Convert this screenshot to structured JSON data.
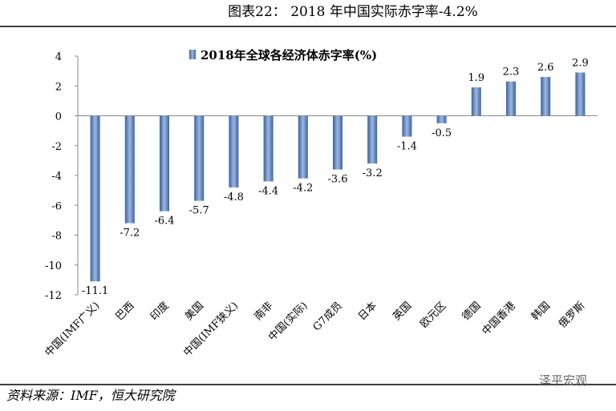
{
  "header": "图表22：  2018 年中国实际赤字率-4.2%",
  "source": "资料来源：IMF，恒大研究院",
  "watermark": "泽平宏观",
  "chart_data": {
    "type": "bar",
    "categories": [
      "中国(IMF广义)",
      "巴西",
      "印度",
      "美国",
      "中国(IMF狭义)",
      "南非",
      "中国(实际)",
      "G7成员",
      "日本",
      "英国",
      "欧元区",
      "德国",
      "中国香港",
      "韩国",
      "俄罗斯"
    ],
    "series": [
      {
        "name": "2018年全球各经济体赤字率(%)",
        "color": "#4f81bd",
        "values": [
          -11.1,
          -7.2,
          -6.4,
          -5.7,
          -4.8,
          -4.4,
          -4.2,
          -3.6,
          -3.2,
          -1.4,
          -0.5,
          1.9,
          2.3,
          2.6,
          2.9
        ]
      }
    ],
    "ylim": [
      -12,
      4
    ],
    "yticks": [
      -12,
      -10,
      -8,
      -6,
      -4,
      -2,
      0,
      2,
      4
    ],
    "legend": "top",
    "grid": false
  }
}
